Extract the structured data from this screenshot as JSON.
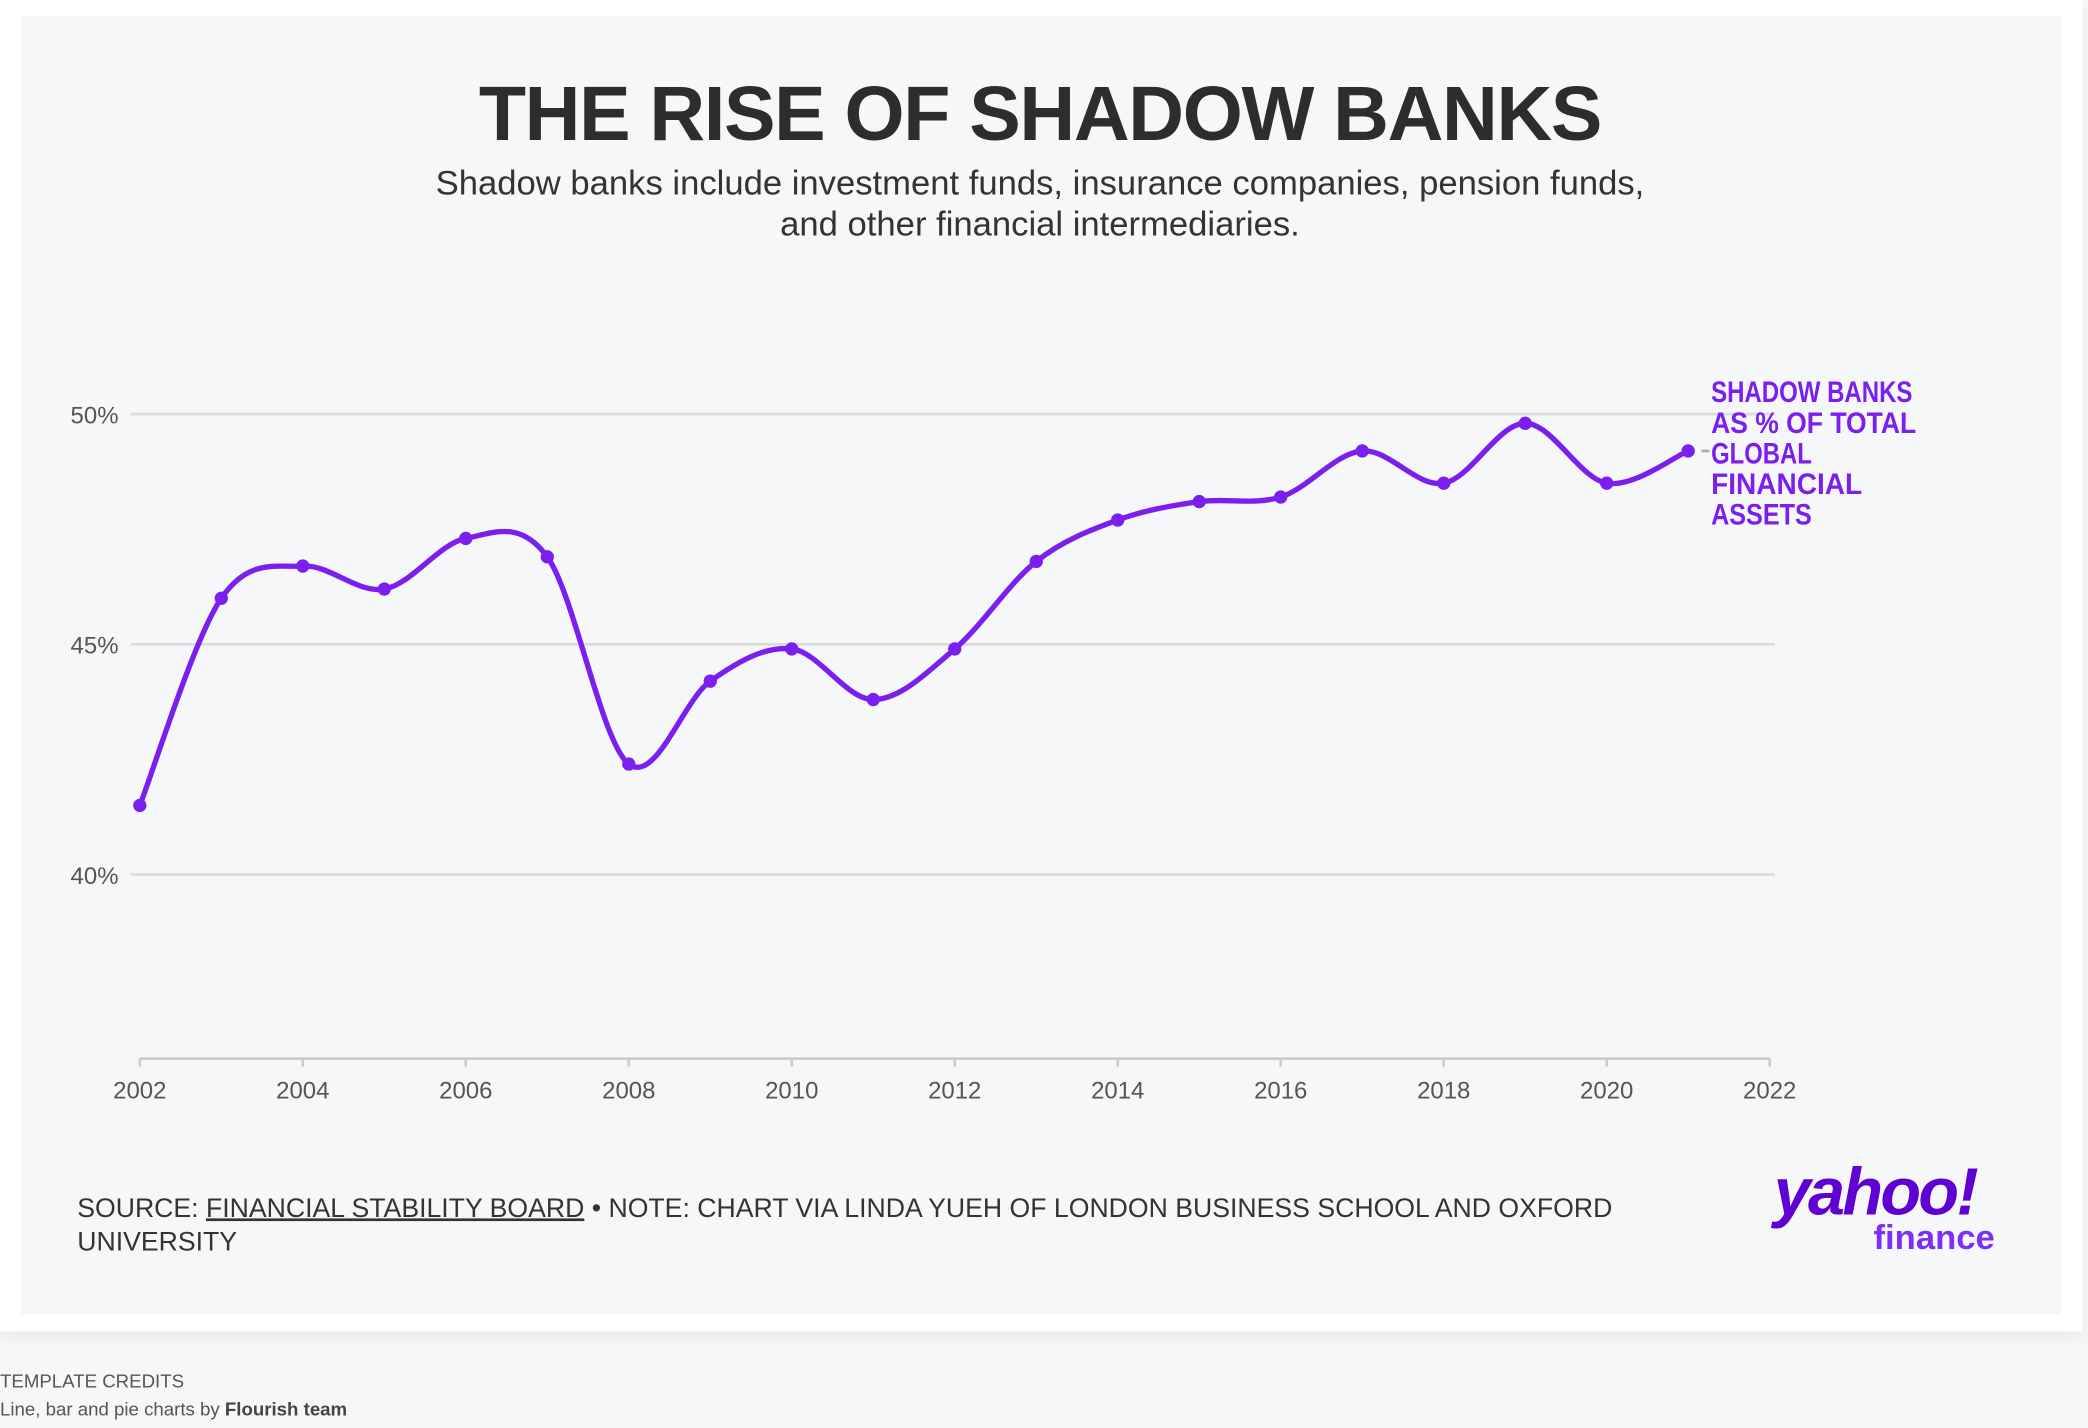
{
  "title": "THE RISE OF SHADOW BANKS",
  "subtitle_line1": "Shadow banks include investment funds, insurance companies, pension funds,",
  "subtitle_line2": "and other financial intermediaries.",
  "source": {
    "prefix": "SOURCE: ",
    "link": "FINANCIAL STABILITY BOARD",
    "note": " • NOTE: CHART VIA LINDA YUEH OF LONDON BUSINESS SCHOOL AND OXFORD UNIVERSITY"
  },
  "logo": {
    "main": "yahoo!",
    "sub": "finance"
  },
  "credits": {
    "heading": "TEMPLATE CREDITS",
    "text": "Line, bar and pie charts by ",
    "author": "Flourish team"
  },
  "colors": {
    "line": "#7b1fef",
    "grid": "#dcdcdc",
    "text": "#2d2d2d"
  },
  "chart_data": {
    "type": "line",
    "title": "THE RISE OF SHADOW BANKS",
    "x": [
      2002,
      2003,
      2004,
      2005,
      2006,
      2007,
      2008,
      2009,
      2010,
      2011,
      2012,
      2013,
      2014,
      2015,
      2016,
      2017,
      2018,
      2019,
      2020,
      2021
    ],
    "series": [
      {
        "name": "SHADOW BANKS AS % OF TOTAL GLOBAL FINANCIAL ASSETS",
        "label_lines": [
          "SHADOW BANKS",
          "AS % OF TOTAL",
          "GLOBAL",
          "FINANCIAL",
          "ASSETS"
        ],
        "values": [
          41.5,
          46.0,
          46.7,
          46.2,
          47.3,
          46.9,
          42.4,
          44.2,
          44.9,
          43.8,
          44.9,
          46.8,
          47.7,
          48.1,
          48.2,
          49.2,
          48.5,
          49.8,
          48.5,
          49.2
        ]
      }
    ],
    "xlim": [
      2002,
      2022
    ],
    "ylim": [
      36,
      50
    ],
    "xticks": [
      "2002",
      "2004",
      "2006",
      "2008",
      "2010",
      "2012",
      "2014",
      "2016",
      "2018",
      "2020",
      "2022"
    ],
    "yticks": [
      {
        "value": 40,
        "label": "40%"
      },
      {
        "value": 45,
        "label": "45%"
      },
      {
        "value": 50,
        "label": "50%"
      }
    ],
    "grid": true,
    "smooth": true,
    "markers": true,
    "legend": "direct label right"
  }
}
